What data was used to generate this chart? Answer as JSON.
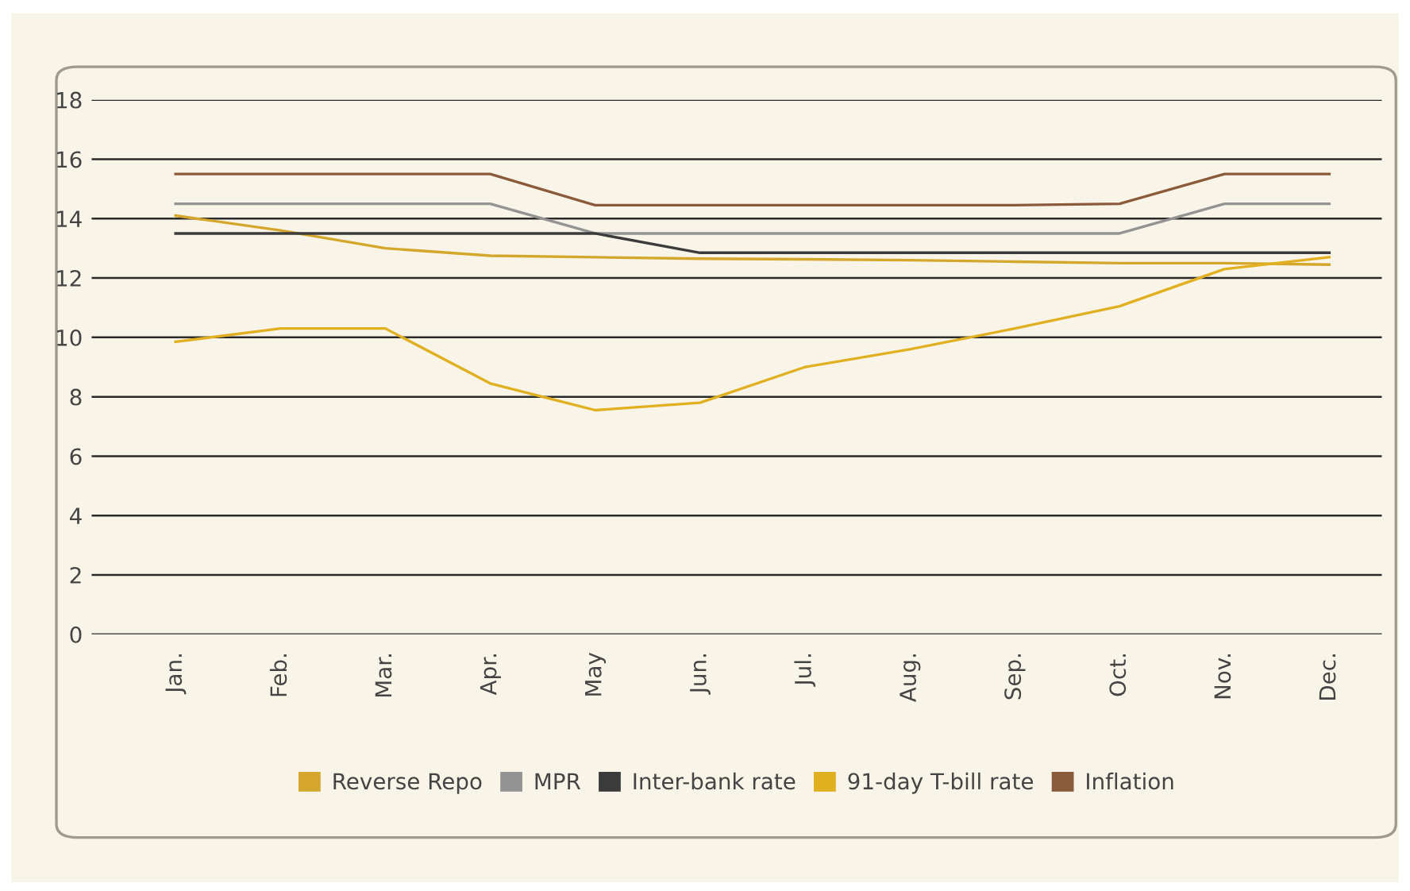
{
  "chart_data": {
    "type": "line",
    "categories": [
      "Jan.",
      "Feb.",
      "Mar.",
      "Apr.",
      "May",
      "Jun.",
      "Jul.",
      "Aug.",
      "Sep.",
      "Oct.",
      "Nov.",
      "Dec."
    ],
    "series": [
      {
        "name": "Reverse Repo",
        "color": "#d4a72c",
        "values": [
          14.1,
          13.6,
          13.0,
          12.75,
          12.7,
          12.65,
          12.63,
          12.6,
          12.55,
          12.5,
          12.5,
          12.45
        ]
      },
      {
        "name": "MPR",
        "color": "#939393",
        "values": [
          14.5,
          14.5,
          14.5,
          14.5,
          13.5,
          13.5,
          13.5,
          13.5,
          13.5,
          13.5,
          14.5,
          14.5
        ]
      },
      {
        "name": "Inter-bank rate",
        "color": "#3b3b3b",
        "values": [
          13.5,
          13.5,
          13.5,
          13.5,
          13.5,
          12.85,
          12.85,
          12.85,
          12.85,
          12.85,
          12.85,
          12.85
        ]
      },
      {
        "name": "91-day T-bill rate",
        "color": "#e0b020",
        "values": [
          9.85,
          10.3,
          10.3,
          8.45,
          7.55,
          7.8,
          9.0,
          9.6,
          10.3,
          11.05,
          12.3,
          12.7
        ]
      },
      {
        "name": "Inflation",
        "color": "#8b5a3a",
        "values": [
          15.5,
          15.5,
          15.5,
          15.5,
          14.45,
          14.45,
          14.45,
          14.45,
          14.45,
          14.5,
          15.5,
          15.5
        ]
      }
    ],
    "ylim": [
      0,
      18
    ],
    "yticks": [
      0,
      2,
      4,
      6,
      8,
      10,
      12,
      14,
      16,
      18
    ],
    "grid": "y",
    "legend": "bottom",
    "marker": "none",
    "line_style": "solid"
  }
}
